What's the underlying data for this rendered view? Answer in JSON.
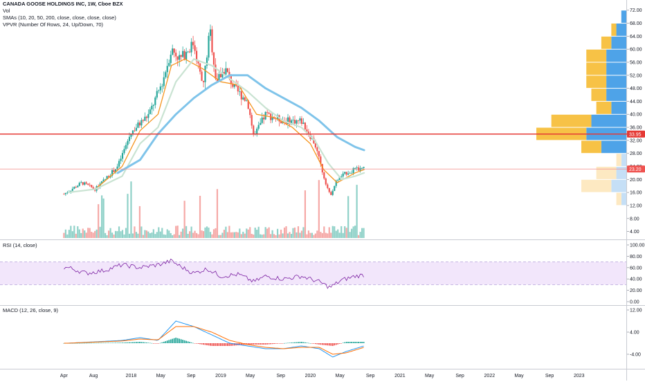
{
  "legend": {
    "symbol": "CANADA GOOSE HOLDINGS INC, 1W, Cboe BZX",
    "vol": "Vol",
    "smas": "SMAs (10, 20, 50, 200, close, close, close, close)",
    "vpvr": "VPVR (Number Of Rows, 24, Up/Down, 70)"
  },
  "rsi_title": "RSI (14, close)",
  "macd_title": "MACD (12, 26, close, 9)",
  "colors": {
    "up": "#26a69a",
    "down": "#ef5350",
    "sma10": "#f5941d",
    "sma20": "#c9e3d2",
    "sma50": "#7fc4ea",
    "hline": "#e53935",
    "rsi_band": "#f2e6fb",
    "rsi_line": "#7b1fa2",
    "vpvr_up": "#4ea3e8",
    "vpvr_down": "#f7c246",
    "macd_line": "#2196f3",
    "signal_line": "#ff6d00"
  },
  "chart_data": [
    {
      "type": "candlestick",
      "y_axis_labels": [
        "72.00",
        "68.00",
        "64.00",
        "60.00",
        "56.00",
        "52.00",
        "48.00",
        "44.00",
        "40.00",
        "36.00",
        "32.00",
        "28.00",
        "24.00",
        "20.00",
        "16.00",
        "12.00",
        "8.00",
        "4.00"
      ],
      "ylim": [
        2,
        73
      ],
      "x_axis_labels": [
        "Apr",
        "Aug",
        "2018",
        "May",
        "Sep",
        "2019",
        "May",
        "Sep",
        "2020",
        "May",
        "Sep",
        "2021",
        "May",
        "Sep",
        "2022",
        "May",
        "Sep",
        "2023"
      ],
      "price_markers": [
        {
          "value": 33.95,
          "label": "33.95",
          "color": "#e53935"
        },
        {
          "value": 23.2,
          "label": "23.20",
          "color": "#ef5350"
        }
      ],
      "price_points": [
        [
          2017.25,
          15.5
        ],
        [
          2017.45,
          19.0
        ],
        [
          2017.6,
          17.0
        ],
        [
          2017.85,
          24.0
        ],
        [
          2018.0,
          34.5
        ],
        [
          2018.2,
          40.0
        ],
        [
          2018.35,
          50.0
        ],
        [
          2018.45,
          60.0
        ],
        [
          2018.55,
          57.0
        ],
        [
          2018.7,
          62.0
        ],
        [
          2018.8,
          48.0
        ],
        [
          2018.88,
          66.0
        ],
        [
          2018.95,
          50.0
        ],
        [
          2019.05,
          54.0
        ],
        [
          2019.15,
          48.0
        ],
        [
          2019.3,
          44.0
        ],
        [
          2019.37,
          33.0
        ],
        [
          2019.5,
          40.0
        ],
        [
          2019.7,
          38.0
        ],
        [
          2019.9,
          38.0
        ],
        [
          2020.05,
          31.0
        ],
        [
          2020.15,
          21.0
        ],
        [
          2020.22,
          15.0
        ],
        [
          2020.3,
          20.0
        ],
        [
          2020.4,
          22.0
        ],
        [
          2020.5,
          23.0
        ],
        [
          2020.6,
          23.2
        ]
      ],
      "series": [
        {
          "name": "SMA 10",
          "points": [
            [
              2017.3,
              16
            ],
            [
              2017.6,
              17
            ],
            [
              2017.9,
              24
            ],
            [
              2018.1,
              35
            ],
            [
              2018.3,
              40
            ],
            [
              2018.45,
              55
            ],
            [
              2018.6,
              57
            ],
            [
              2018.8,
              54
            ],
            [
              2019.0,
              50
            ],
            [
              2019.2,
              49
            ],
            [
              2019.4,
              40
            ],
            [
              2019.6,
              39
            ],
            [
              2019.8,
              36
            ],
            [
              2020.0,
              31
            ],
            [
              2020.15,
              23
            ],
            [
              2020.3,
              19
            ],
            [
              2020.5,
              22
            ],
            [
              2020.6,
              23
            ]
          ]
        },
        {
          "name": "SMA 20",
          "points": [
            [
              2017.3,
              16
            ],
            [
              2017.6,
              17
            ],
            [
              2017.9,
              21
            ],
            [
              2018.1,
              31
            ],
            [
              2018.3,
              36
            ],
            [
              2018.5,
              50
            ],
            [
              2018.7,
              57
            ],
            [
              2018.9,
              55
            ],
            [
              2019.1,
              51
            ],
            [
              2019.3,
              47
            ],
            [
              2019.5,
              42
            ],
            [
              2019.7,
              38
            ],
            [
              2019.9,
              36
            ],
            [
              2020.05,
              32
            ],
            [
              2020.2,
              25
            ],
            [
              2020.35,
              20
            ],
            [
              2020.5,
              21
            ],
            [
              2020.6,
              22
            ]
          ]
        },
        {
          "name": "SMA 50",
          "points": [
            [
              2017.85,
              22
            ],
            [
              2018.1,
              26
            ],
            [
              2018.3,
              34
            ],
            [
              2018.5,
              40
            ],
            [
              2018.7,
              45
            ],
            [
              2018.9,
              49
            ],
            [
              2019.1,
              52
            ],
            [
              2019.3,
              52
            ],
            [
              2019.5,
              48
            ],
            [
              2019.7,
              45
            ],
            [
              2019.9,
              42
            ],
            [
              2020.1,
              38
            ],
            [
              2020.3,
              33
            ],
            [
              2020.5,
              30
            ],
            [
              2020.6,
              29
            ]
          ]
        }
      ]
    },
    {
      "type": "bar",
      "name": "VPVR",
      "price_levels": [
        70,
        66,
        62,
        58,
        54,
        50,
        46,
        42,
        38,
        34,
        30,
        26,
        22,
        18,
        14
      ],
      "up_volume": [
        1,
        2,
        3,
        4,
        4,
        4,
        4,
        3,
        7,
        8,
        5,
        1,
        2,
        3,
        1
      ],
      "down_volume": [
        0,
        1,
        2,
        4,
        4,
        4,
        3,
        3,
        8,
        10,
        4,
        1,
        4,
        6,
        1
      ]
    },
    {
      "type": "line",
      "name": "RSI",
      "y_axis_labels": [
        "100.00",
        "80.00",
        "60.00",
        "40.00",
        "20.00",
        "0.00"
      ],
      "ylim": [
        0,
        100
      ],
      "band": [
        30,
        70
      ],
      "points": [
        [
          2017.3,
          60
        ],
        [
          2017.5,
          50
        ],
        [
          2017.7,
          55
        ],
        [
          2017.9,
          65
        ],
        [
          2018.1,
          60
        ],
        [
          2018.3,
          65
        ],
        [
          2018.45,
          72
        ],
        [
          2018.55,
          62
        ],
        [
          2018.7,
          50
        ],
        [
          2018.85,
          58
        ],
        [
          2019.0,
          45
        ],
        [
          2019.2,
          48
        ],
        [
          2019.37,
          35
        ],
        [
          2019.5,
          45
        ],
        [
          2019.7,
          40
        ],
        [
          2019.9,
          45
        ],
        [
          2020.1,
          35
        ],
        [
          2020.22,
          25
        ],
        [
          2020.35,
          38
        ],
        [
          2020.5,
          45
        ],
        [
          2020.6,
          47
        ]
      ]
    },
    {
      "type": "line",
      "name": "MACD",
      "y_axis_labels": [
        "12.00",
        "4.00",
        "-4.00"
      ],
      "ylim": [
        -9,
        13
      ],
      "series": [
        {
          "name": "MACD",
          "points": [
            [
              2017.3,
              0
            ],
            [
              2017.6,
              0.5
            ],
            [
              2017.9,
              1
            ],
            [
              2018.1,
              2
            ],
            [
              2018.3,
              1
            ],
            [
              2018.5,
              8
            ],
            [
              2018.7,
              6
            ],
            [
              2018.9,
              3
            ],
            [
              2019.1,
              0
            ],
            [
              2019.3,
              -1
            ],
            [
              2019.5,
              -2
            ],
            [
              2019.7,
              -2
            ],
            [
              2019.9,
              -1
            ],
            [
              2020.1,
              -2
            ],
            [
              2020.25,
              -5
            ],
            [
              2020.4,
              -3
            ],
            [
              2020.6,
              -1
            ]
          ]
        },
        {
          "name": "Signal",
          "points": [
            [
              2017.3,
              0
            ],
            [
              2017.6,
              0.4
            ],
            [
              2017.9,
              0.8
            ],
            [
              2018.1,
              1.5
            ],
            [
              2018.3,
              1.2
            ],
            [
              2018.5,
              6
            ],
            [
              2018.7,
              6
            ],
            [
              2018.9,
              4
            ],
            [
              2019.1,
              1
            ],
            [
              2019.3,
              -0.5
            ],
            [
              2019.5,
              -1.5
            ],
            [
              2019.7,
              -2
            ],
            [
              2019.9,
              -1.5
            ],
            [
              2020.1,
              -1.5
            ],
            [
              2020.25,
              -4
            ],
            [
              2020.4,
              -3.5
            ],
            [
              2020.6,
              -1.5
            ]
          ]
        }
      ]
    }
  ]
}
